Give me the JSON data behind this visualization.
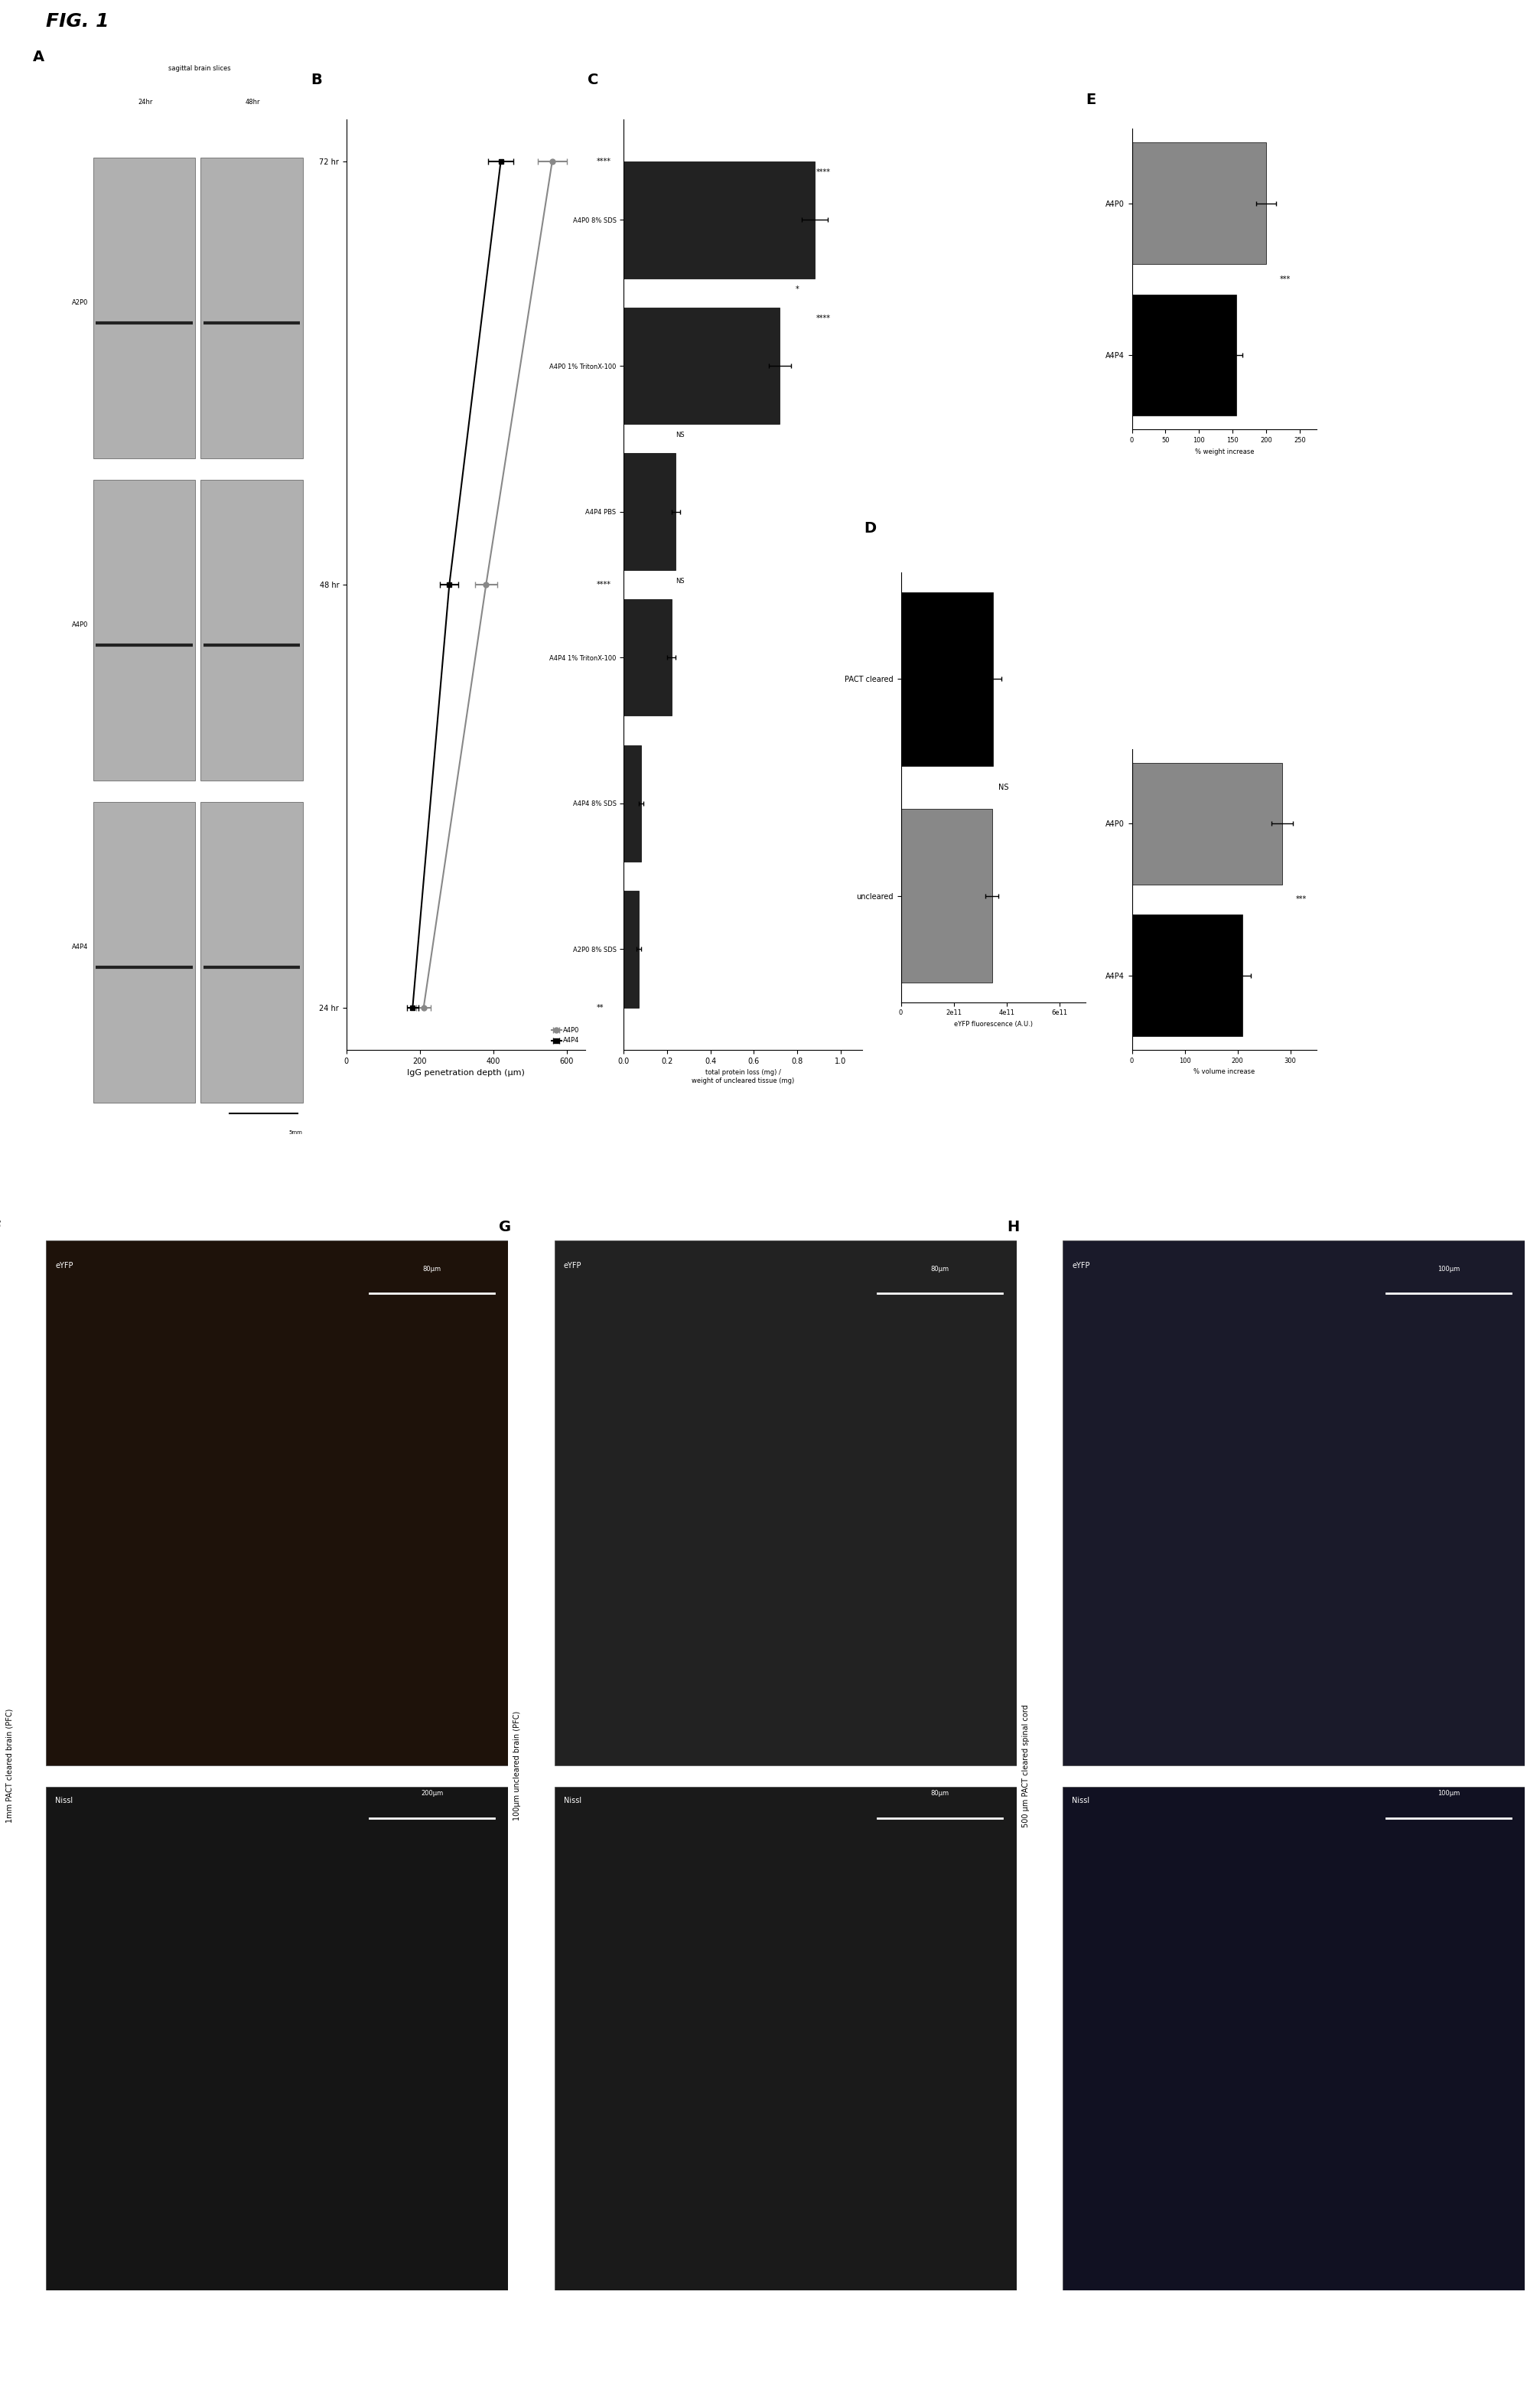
{
  "fig_title": "FIG. 1",
  "background_color": "#ffffff",
  "panel_B": {
    "xlabel": "IgG penetration depth (μm)",
    "time_points": [
      24,
      48,
      72
    ],
    "time_labels": [
      "24 hr",
      "48 hr",
      "72 hr"
    ],
    "A4P0_values": [
      210,
      380,
      560
    ],
    "A4P0_errors": [
      20,
      30,
      40
    ],
    "A4P4_values": [
      180,
      280,
      420
    ],
    "A4P4_errors": [
      15,
      25,
      35
    ],
    "A4P0_color": "#888888",
    "A4P4_color": "#000000",
    "significance": [
      "**",
      "****",
      "****"
    ],
    "xlim": [
      0,
      650
    ],
    "xticks": [
      0,
      200,
      400,
      600
    ]
  },
  "panel_C": {
    "xlabel": "total protein loss (mg) /\nweight of uncleared tissue (mg)",
    "categories": [
      "A2P0 8% SDS",
      "A4P4 8% SDS",
      "A4P4 1% TritonX-100",
      "A4P4 PBS",
      "A4P0 1% TritonX-100",
      "A4P0 8% SDS"
    ],
    "values": [
      0.07,
      0.08,
      0.22,
      0.24,
      0.72,
      0.88
    ],
    "errors": [
      0.01,
      0.01,
      0.02,
      0.02,
      0.05,
      0.06
    ],
    "bar_color": "#222222",
    "xlim": [
      0,
      1.1
    ],
    "xticks": [
      0.0,
      0.2,
      0.4,
      0.6,
      0.8,
      1.0
    ]
  },
  "panel_D": {
    "xlabel": "eYFP fluorescence (A.U.)",
    "categories": [
      "uncleared",
      "PACT cleared"
    ],
    "values": [
      350000000000.0,
      345000000000.0
    ],
    "errors": [
      30000000000.0,
      25000000000.0
    ],
    "bar_colors": [
      "#000000",
      "#888888"
    ],
    "significance": "NS",
    "xlim": [
      0,
      700000000000.0
    ],
    "xticks": [
      0,
      200000000000.0,
      400000000000.0,
      600000000000.0
    ],
    "xticklabels": [
      "0",
      "2e11",
      "4e11",
      "6e11"
    ]
  },
  "panel_E_weight": {
    "xlabel": "% weight increase",
    "categories": [
      "A4P0",
      "A4P4"
    ],
    "values": [
      200,
      155
    ],
    "errors": [
      15,
      10
    ],
    "bar_colors": [
      "#000000",
      "#888888"
    ],
    "significance": "***",
    "xlim": [
      0,
      275
    ],
    "xticks": [
      0,
      50,
      100,
      150,
      200,
      250
    ]
  },
  "panel_E_volume": {
    "xlabel": "% volume increase",
    "categories": [
      "A4P0",
      "A4P4"
    ],
    "values": [
      285,
      210
    ],
    "errors": [
      20,
      15
    ],
    "bar_colors": [
      "#000000",
      "#888888"
    ],
    "significance": "***",
    "xlim": [
      0,
      350
    ],
    "xticks": [
      0,
      100,
      200,
      300
    ]
  },
  "panel_A": {
    "rows": [
      "A2P0",
      "A4P0",
      "A4P4"
    ],
    "cols": [
      "24hr",
      "48hr"
    ],
    "note": "sagittal brain slices",
    "scalebar": "5mm",
    "image_color": "#aaaaaa",
    "line_color": "#333333"
  },
  "panel_F": {
    "title": "1mm PACT cleared brain (PFC)",
    "top_label": "eYFP",
    "bottom_label": "Nissl",
    "top_scalebar": "80μm",
    "bottom_scalebar": "200μm",
    "top_color": "#2a1a00",
    "bottom_color": "#111111"
  },
  "panel_G": {
    "title": "100μm uncleared brain (PFC)",
    "top_label": "eYFP",
    "bottom_label": "Nissl",
    "top_scalebar": "80μm",
    "bottom_scalebar": "80μm",
    "top_color": "#1a1a1a",
    "bottom_color": "#222222"
  },
  "panel_H": {
    "title": "500 μm PACT cleared spinal cord",
    "top_label": "eYFP",
    "bottom_label": "Nissl",
    "top_scalebar": "100μm",
    "bottom_scalebar": "100μm",
    "top_color": "#1a1a2a",
    "bottom_color": "#111122"
  },
  "colors": {
    "dark_gray": "#333333",
    "medium_gray": "#888888",
    "black": "#000000",
    "white": "#ffffff"
  },
  "font_sizes": {
    "panel_label": 14,
    "axis_label": 8,
    "tick_label": 7,
    "significance": 8,
    "fig_label": 18,
    "small": 6,
    "image_label": 7
  }
}
